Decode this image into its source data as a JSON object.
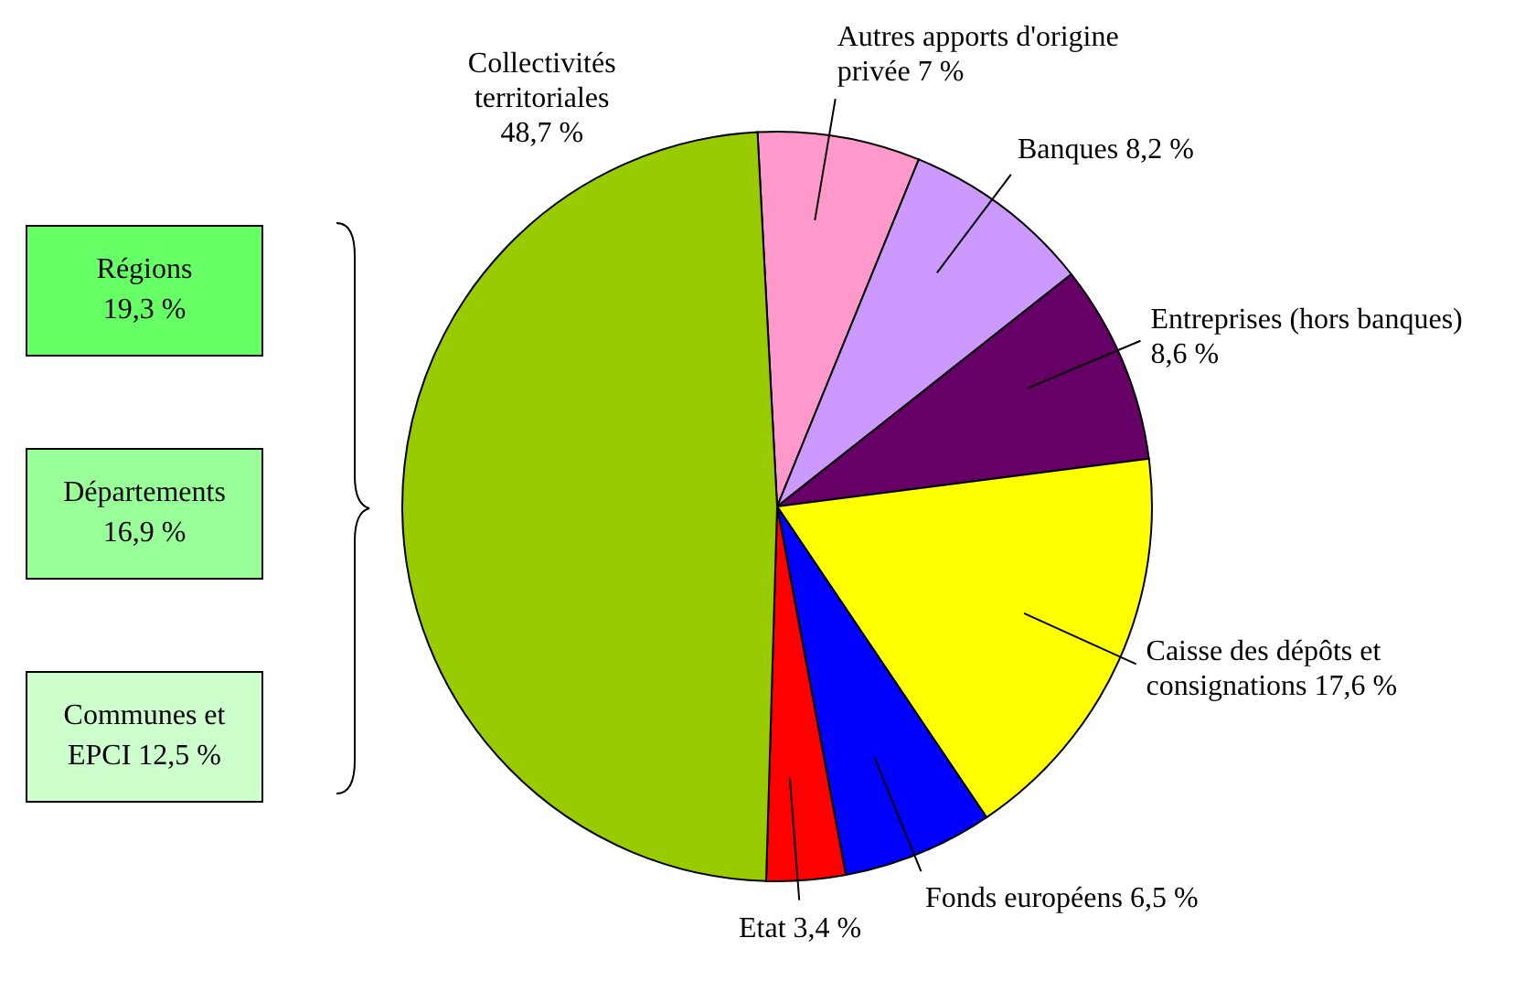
{
  "chart_data": {
    "type": "pie",
    "categories": [
      "Autres apports d'origine\nprivée",
      "Banques",
      "Entreprises (hors banques)\n",
      "Caisse des dépôts et\nconsignations",
      "Fonds européens",
      "Etat",
      "Collectivités\nterritoriales\n"
    ],
    "values": [
      7,
      8.2,
      8.6,
      17.6,
      6.5,
      3.4,
      48.7
    ],
    "value_labels": [
      "7 %",
      "8,2 %",
      "8,6 %",
      "17,6 %",
      "6,5 %",
      "3,4 %",
      "48,7 %"
    ],
    "colors": [
      "#ff99cc",
      "#cc99ff",
      "#660066",
      "#ffff00",
      "#0000ff",
      "#ff0000",
      "#99cc00"
    ],
    "annotations": [
      "Régions\n19,3 %",
      "Départements\n16,9 %",
      "Communes et\nEPCI 12,5 %"
    ],
    "legend": false
  }
}
